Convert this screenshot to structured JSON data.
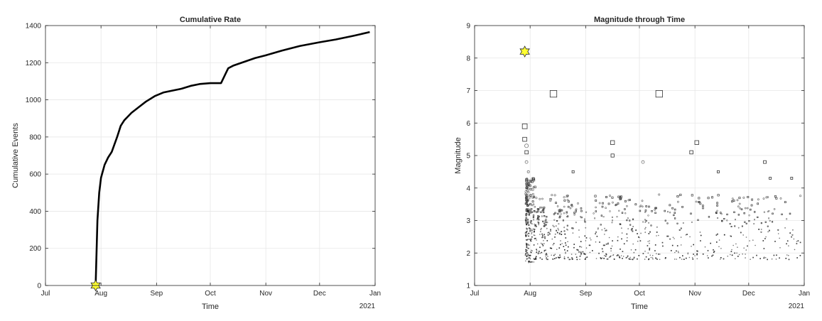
{
  "chart_data": [
    {
      "type": "line",
      "title": "Cumulative Rate",
      "xlabel": "Time",
      "ylabel": "Cumulative Events",
      "x_tick_labels": [
        "Jul",
        "Aug",
        "Sep",
        "Oct",
        "Nov",
        "Dec",
        "Jan"
      ],
      "x_year_label": "2021",
      "x_axis_months_from_jul1": [
        0,
        1,
        2,
        3,
        4,
        5,
        6
      ],
      "ylim": [
        0,
        1400
      ],
      "y_ticks": [
        0,
        200,
        400,
        600,
        800,
        1000,
        1200,
        1400
      ],
      "grid": true,
      "line_color": "#000000",
      "series": [
        {
          "x": [
            "2020-07-29",
            "2020-07-30",
            "2020-07-31",
            "2020-08-01",
            "2020-08-03",
            "2020-08-05",
            "2020-08-07",
            "2020-08-10",
            "2020-08-12",
            "2020-08-14",
            "2020-08-16",
            "2020-08-18",
            "2020-08-22",
            "2020-08-26",
            "2020-08-31",
            "2020-09-05",
            "2020-09-10",
            "2020-09-15",
            "2020-09-20",
            "2020-09-25",
            "2020-10-01",
            "2020-10-07",
            "2020-10-10",
            "2020-10-11",
            "2020-10-14",
            "2020-10-20",
            "2020-10-26",
            "2020-11-01",
            "2020-11-10",
            "2020-11-20",
            "2020-12-01",
            "2020-12-10",
            "2020-12-20",
            "2020-12-29"
          ],
          "y": [
            0,
            350,
            500,
            580,
            650,
            690,
            720,
            800,
            860,
            890,
            910,
            930,
            960,
            990,
            1020,
            1040,
            1050,
            1060,
            1075,
            1085,
            1090,
            1090,
            1150,
            1170,
            1185,
            1205,
            1225,
            1240,
            1265,
            1290,
            1310,
            1325,
            1345,
            1365
          ]
        }
      ],
      "mainshock_marker": {
        "x": "2020-07-29",
        "y": 0,
        "color": "#ffff33"
      }
    },
    {
      "type": "scatter",
      "title": "Magnitude through Time",
      "xlabel": "Time",
      "ylabel": "Magnitude",
      "x_tick_labels": [
        "Jul",
        "Aug",
        "Sep",
        "Oct",
        "Nov",
        "Dec",
        "Jan"
      ],
      "x_year_label": "2021",
      "ylim": [
        1,
        9
      ],
      "y_ticks": [
        1,
        2,
        3,
        4,
        5,
        6,
        7,
        8,
        9
      ],
      "grid": true,
      "mainshock_marker": {
        "x": "2020-07-29",
        "y": 8.2,
        "color": "#ffff33"
      },
      "notable_events": [
        {
          "x": "2020-07-29",
          "y": 5.9,
          "shape": "square"
        },
        {
          "x": "2020-07-29",
          "y": 5.5,
          "shape": "square"
        },
        {
          "x": "2020-07-30",
          "y": 5.3,
          "shape": "circle"
        },
        {
          "x": "2020-07-30",
          "y": 5.1,
          "shape": "square"
        },
        {
          "x": "2020-07-30",
          "y": 4.8,
          "shape": "circle"
        },
        {
          "x": "2020-07-31",
          "y": 4.5,
          "shape": "circle"
        },
        {
          "x": "2020-08-14",
          "y": 6.9,
          "shape": "square"
        },
        {
          "x": "2020-08-25",
          "y": 4.5,
          "shape": "square"
        },
        {
          "x": "2020-09-16",
          "y": 5.4,
          "shape": "square"
        },
        {
          "x": "2020-09-16",
          "y": 5.0,
          "shape": "square"
        },
        {
          "x": "2020-10-03",
          "y": 4.8,
          "shape": "circle"
        },
        {
          "x": "2020-10-12",
          "y": 6.9,
          "shape": "square"
        },
        {
          "x": "2020-10-30",
          "y": 5.1,
          "shape": "square"
        },
        {
          "x": "2020-11-02",
          "y": 5.4,
          "shape": "square"
        },
        {
          "x": "2020-11-14",
          "y": 4.5,
          "shape": "square"
        },
        {
          "x": "2020-12-10",
          "y": 4.8,
          "shape": "square"
        },
        {
          "x": "2020-12-13",
          "y": 4.3,
          "shape": "square"
        },
        {
          "x": "2020-12-25",
          "y": 4.3,
          "shape": "square"
        }
      ]
    }
  ]
}
